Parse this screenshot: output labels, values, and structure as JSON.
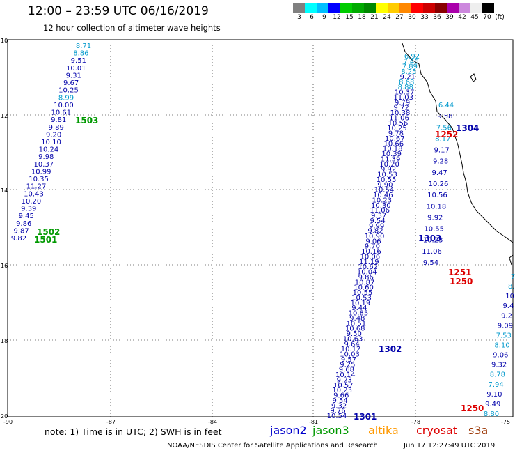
{
  "header": {
    "title": "12:00 – 23:59 UTC 06/16/2019",
    "subtitle": "12 hour collection of altimeter wave heights"
  },
  "colorbar": {
    "swatches": [
      "#808080",
      "#00ffff",
      "#00bfff",
      "#0000ff",
      "#00cc00",
      "#00aa00",
      "#008800",
      "#ffff00",
      "#ffcc00",
      "#ff8800",
      "#ff0000",
      "#cc0000",
      "#880000",
      "#aa00aa",
      "#cc88dd",
      "#eeeeee",
      "#000000"
    ],
    "labels": [
      "3",
      "6",
      "9",
      "12",
      "15",
      "18",
      "21",
      "24",
      "27",
      "30",
      "33",
      "36",
      "39",
      "42",
      "45",
      "70",
      "(ft)"
    ]
  },
  "axes": {
    "lat_labels": [
      "10",
      "12",
      "14",
      "16",
      "18",
      "20"
    ],
    "lon_labels": [
      "-90",
      "-87",
      "-84",
      "-81",
      "-78",
      "-75"
    ]
  },
  "tracks": {
    "t1503": {
      "values": [
        "8.71",
        "8.86",
        "9.51",
        "10.01",
        "9.31",
        "9.67",
        "10.25",
        "8.99",
        "10.00",
        "10.61",
        "9.81",
        "9.89",
        "9.20",
        "10.10",
        "10.24",
        "9.98",
        "10.37",
        "10.99",
        "10.35",
        "11.27",
        "10.43",
        "10.20",
        "9.39",
        "9.45",
        "9.86",
        "9.87",
        "9.82"
      ],
      "colors": [
        "#0099cc",
        "#0099cc",
        "#0000aa",
        "#0000aa",
        "#0000aa",
        "#0000aa",
        "#0000aa",
        "#0099cc",
        "#0000aa",
        "#0000aa",
        "#0000aa",
        "#0000aa",
        "#0000aa",
        "#0000aa",
        "#0000aa",
        "#0000aa",
        "#0000aa",
        "#0000aa",
        "#0000aa",
        "#0000aa",
        "#0000aa",
        "#0000aa",
        "#0000aa",
        "#0000aa",
        "#0000aa",
        "#0000aa",
        "#0000aa"
      ]
    },
    "t1304": {
      "values": [
        "6.92",
        "7.46",
        "7.89",
        "8.25",
        "9.21",
        "8.68",
        "8.88",
        "10.37",
        "11.03",
        "9.79",
        "9.72",
        "10.38",
        "11.06",
        "10.56",
        "10.25",
        "9.78",
        "10.67",
        "10.66",
        "10.18",
        "10.39",
        "11.39",
        "10.20",
        "9.92",
        "10.53",
        "10.55",
        "9.90",
        "10.54",
        "10.46",
        "10.23",
        "10.30",
        "11.06",
        "9.37",
        "9.54",
        "9.99",
        "9.82",
        "10.90",
        "9.06",
        "9.70",
        "10.16",
        "10.06",
        "11.19",
        "10.62",
        "10.04",
        "9.86",
        "10.87",
        "10.60",
        "10.55",
        "10.53",
        "10.19",
        "9.44",
        "10.85",
        "9.48",
        "10.51",
        "10.68",
        "9.50",
        "10.63",
        "9.64",
        "10.12",
        "10.03",
        "9.57",
        "9.25",
        "9.68",
        "10.14",
        "9.23",
        "10.57",
        "10.23",
        "9.66",
        "9.54",
        "9.32",
        "9.76",
        "10.54"
      ],
      "colors": [
        "#0099cc",
        "#0099cc",
        "#0099cc",
        "#0099cc",
        "#0000aa",
        "#0099cc",
        "#0099cc",
        "#0000aa",
        "#0000aa",
        "#0000aa",
        "#0000aa",
        "#0000aa",
        "#0000aa",
        "#0000aa",
        "#0000aa",
        "#0000aa",
        "#0000aa",
        "#0000aa",
        "#0000aa",
        "#0000aa",
        "#0000aa",
        "#0000aa",
        "#0000aa",
        "#0000aa",
        "#0000aa",
        "#0000aa",
        "#0000aa",
        "#0000aa",
        "#0000aa",
        "#0000aa",
        "#0000aa",
        "#0000aa",
        "#0000aa",
        "#0000aa",
        "#0000aa",
        "#0000aa",
        "#0000aa",
        "#0000aa",
        "#0000aa",
        "#0000aa",
        "#0000aa",
        "#0000aa",
        "#0000aa",
        "#0000aa",
        "#0000aa",
        "#0000aa",
        "#0000aa",
        "#0000aa",
        "#0000aa",
        "#0000aa",
        "#0000aa",
        "#0000aa",
        "#0000aa",
        "#0000aa",
        "#0000aa",
        "#0000aa",
        "#0000aa",
        "#0000aa",
        "#0000aa",
        "#0000aa",
        "#0000aa",
        "#0000aa",
        "#0000aa",
        "#0000aa",
        "#0000aa",
        "#0000aa",
        "#0000aa",
        "#0000aa",
        "#0000aa",
        "#0000aa",
        "#0000aa"
      ]
    },
    "tmid": {
      "values": [
        "6.44",
        "9.58",
        "7.56",
        "8.17",
        "9.17",
        "9.28",
        "9.47",
        "10.26",
        "10.56",
        "10.18",
        "9.92",
        "10.55",
        "10.23",
        "11.06",
        "9.54"
      ],
      "colors": [
        "#0099cc",
        "#0000aa",
        "#0099cc",
        "#0099cc",
        "#0000aa",
        "#0000aa",
        "#0000aa",
        "#0000aa",
        "#0000aa",
        "#0000aa",
        "#0000aa",
        "#0000aa",
        "#0000aa",
        "#0000aa",
        "#0000aa"
      ]
    },
    "tright": {
      "values": [
        "7",
        "8.",
        "10",
        "9.4",
        "9.2",
        "9.09",
        "7.53",
        "8.10",
        "9.06",
        "9.32",
        "8.78",
        "7.94",
        "9.10",
        "9.49",
        "8.80"
      ],
      "colors": [
        "#0099cc",
        "#0099cc",
        "#0000aa",
        "#0000aa",
        "#0000aa",
        "#0000aa",
        "#0099cc",
        "#0099cc",
        "#0000aa",
        "#0000aa",
        "#0099cc",
        "#0099cc",
        "#0000aa",
        "#0000aa",
        "#0099cc"
      ]
    }
  },
  "track_labels": {
    "l1503": "1503",
    "l1502": "1502",
    "l1501": "1501",
    "l1304": "1304",
    "l1252": "1252",
    "l1303": "1303",
    "l1251": "1251",
    "l1250a": "1250",
    "l1302": "1302",
    "l1301": "1301",
    "l1250b": "1250"
  },
  "legend": {
    "note": "note: 1) Time is in UTC; 2) SWH is in feet",
    "jason2": "jason2",
    "jason3": "jason3",
    "altika": "altika",
    "cryosat": "cryosat",
    "s3a": "s3a",
    "colors": {
      "jason2": "#0000cc",
      "jason3": "#009900",
      "altika": "#ff9900",
      "cryosat": "#dd0000",
      "s3a": "#993300"
    }
  },
  "footer": {
    "org": "NOAA/NESDIS Center for Satellite Applications and Research",
    "timestamp": "Jun 17 12:27:49 UTC 2019"
  }
}
